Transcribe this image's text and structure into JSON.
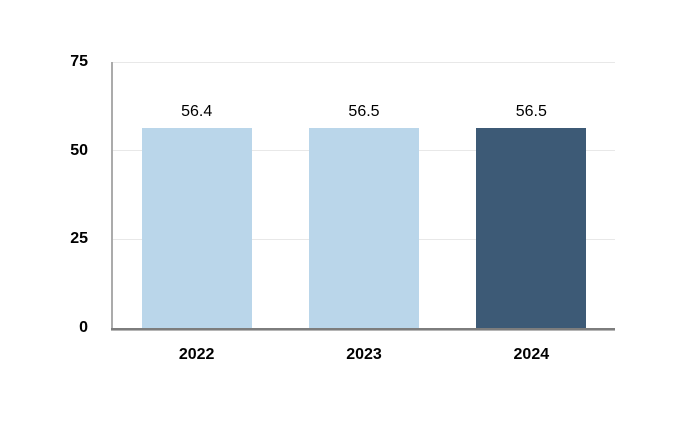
{
  "page": {
    "background": "#ffffff"
  },
  "chart_data": {
    "type": "bar",
    "title": "",
    "categories": [
      "2022",
      "2023",
      "2024"
    ],
    "values": [
      56.4,
      56.5,
      56.5
    ],
    "value_labels": [
      "56.4",
      "56.5",
      "56.5"
    ],
    "bar_colors": [
      "#bad6ea",
      "#bad6ea",
      "#3d5a76"
    ],
    "xlabel": "",
    "ylabel": "",
    "ylim": [
      0,
      75
    ],
    "yticks": [
      0,
      25,
      50,
      75
    ],
    "grid": true,
    "legend_position": "none"
  },
  "colors": {
    "bar_light_blue": "#bad6ea",
    "bar_dark_blue": "#3d5a76",
    "gridline": "#e8e8e8",
    "y_axis_line": "#ababab",
    "x_axis_line": "#7d7d7d",
    "label_text": "#000000"
  }
}
